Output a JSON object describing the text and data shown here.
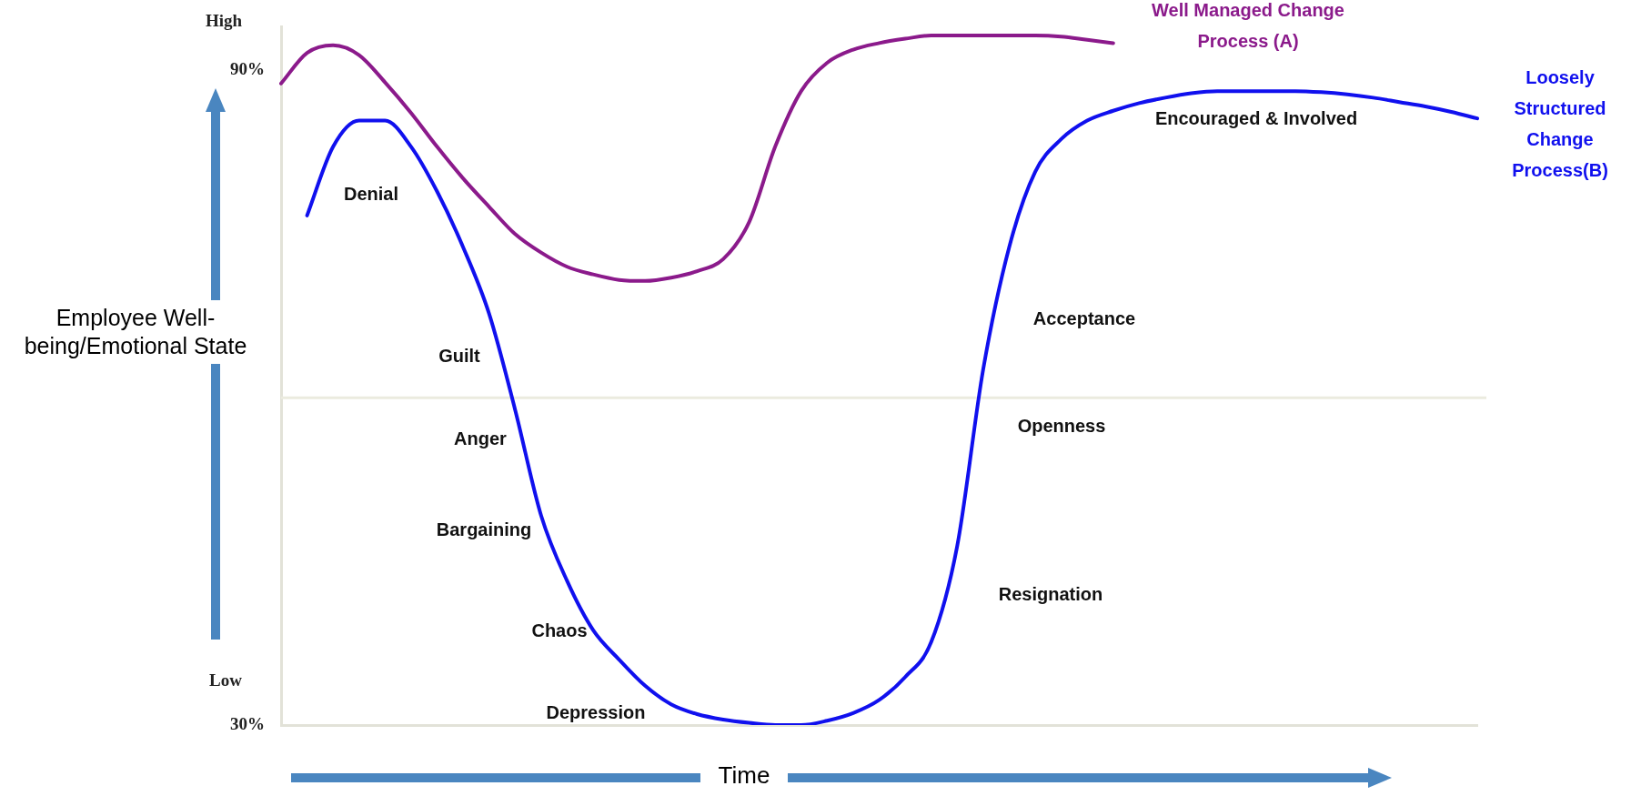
{
  "chart_data": {
    "type": "line",
    "ylabel": "Employee Well-being/Emotional State",
    "xlabel": "Time",
    "categories": [
      null,
      null,
      null,
      null,
      null,
      null,
      null,
      null,
      null,
      null,
      null,
      null,
      null,
      null,
      null,
      null,
      null,
      null,
      null,
      null,
      null,
      null,
      null,
      null,
      null,
      null,
      null,
      null,
      null,
      null,
      null,
      null,
      null,
      null,
      null,
      null,
      null,
      null,
      null,
      null,
      null,
      null,
      null,
      null,
      null,
      null,
      null
    ],
    "ylim": [
      30,
      94
    ],
    "yticks": [
      {
        "value": 30,
        "label": "30%"
      },
      {
        "value": 90,
        "label": "90%"
      }
    ],
    "ref_lines": [
      {
        "axis": "y",
        "value": 60,
        "color": "#ebebdf"
      }
    ],
    "marker": "none",
    "legend": false,
    "annotations": [
      "High",
      "Low",
      "Denial",
      "Guilt",
      "Anger",
      "Bargaining",
      "Chaos",
      "Depression",
      "Acceptance",
      "Openness",
      "Resignation",
      "Encouraged & Involved"
    ],
    "series": [
      {
        "name": "Well Managed Change Process (A)",
        "color": "#8b1a8b",
        "values": [
          88.8,
          91.6,
          92.3,
          91.4,
          88.9,
          86.1,
          83.0,
          80.1,
          77.5,
          75.0,
          73.3,
          72.0,
          71.3,
          70.8,
          70.7,
          71.0,
          71.6,
          72.7,
          76.1,
          83.0,
          88.1,
          90.7,
          91.9,
          92.5,
          92.9,
          93.2,
          93.2,
          93.2,
          93.2,
          93.2,
          93.1,
          92.8,
          92.5,
          null,
          null,
          null,
          null,
          null,
          null,
          null,
          null,
          null,
          null,
          null,
          null,
          null,
          null
        ]
      },
      {
        "name": "Loosely Structured Change Process(B)",
        "color": "#1010ee",
        "values": [
          null,
          76.7,
          83.0,
          85.4,
          85.4,
          83.0,
          78.9,
          73.8,
          67.7,
          58.9,
          49.2,
          43.2,
          38.7,
          36.0,
          33.6,
          31.9,
          31.0,
          30.5,
          30.2,
          30.0,
          30.0,
          30.4,
          31.1,
          32.3,
          34.4,
          37.6,
          46.4,
          62.6,
          73.8,
          80.7,
          83.7,
          85.4,
          86.3,
          87.0,
          87.5,
          87.9,
          88.1,
          88.1,
          88.1,
          88.1,
          88.0,
          87.8,
          87.5,
          87.1,
          86.7,
          86.2,
          85.6
        ]
      }
    ]
  }
}
